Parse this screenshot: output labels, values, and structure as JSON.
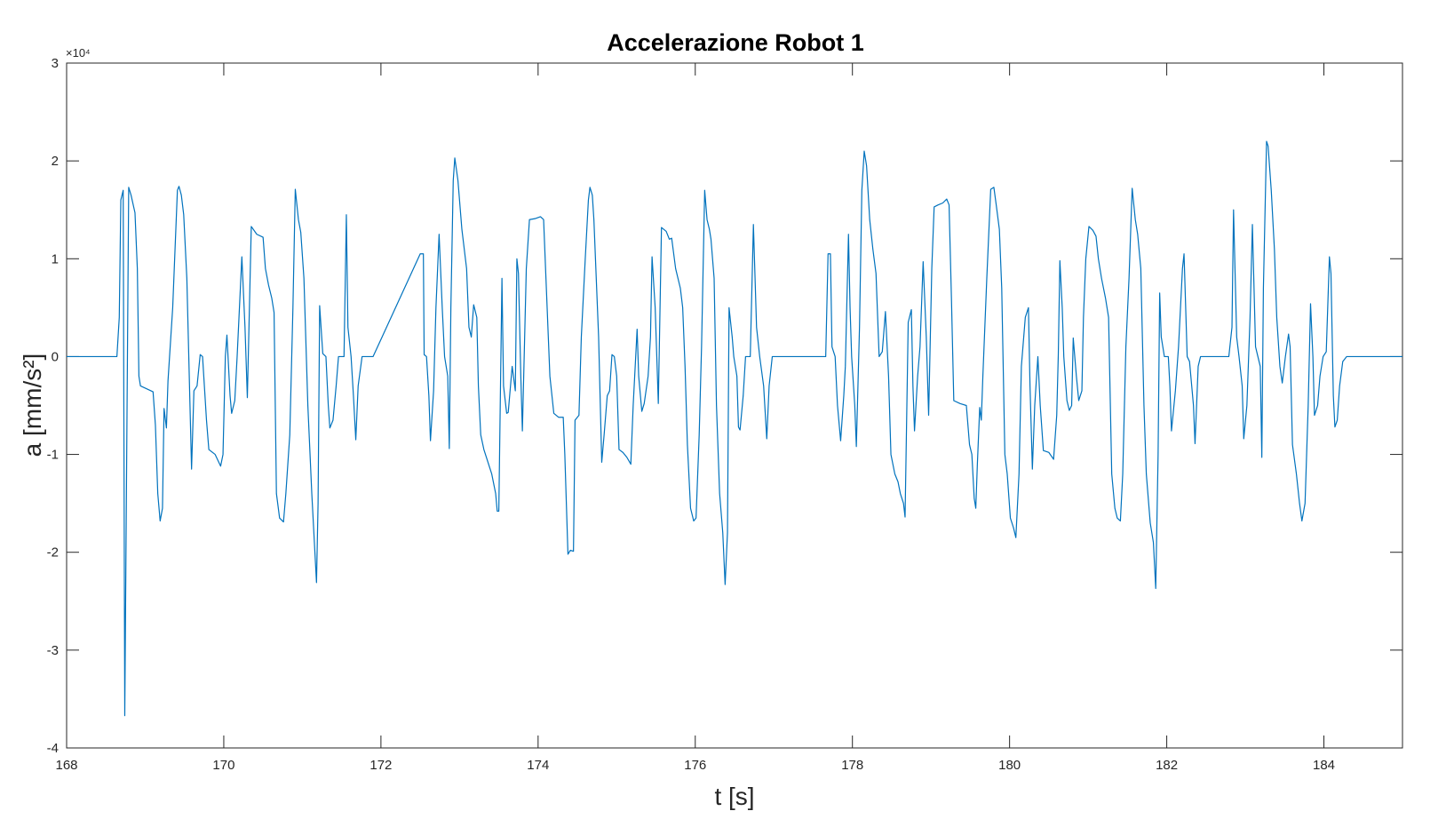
{
  "chart_data": {
    "type": "line",
    "title": "Accelerazione Robot 1",
    "x_label": "t [s]",
    "y_label": "a [mm/s²]",
    "y_exponent": "×10⁴",
    "xlim": [
      168,
      185
    ],
    "xticks": [
      168,
      170,
      172,
      174,
      176,
      178,
      180,
      182,
      184
    ],
    "ylim": [
      -40000,
      30000
    ],
    "yticks": [
      {
        "value": -40000,
        "label": "-4"
      },
      {
        "value": -30000,
        "label": "-3"
      },
      {
        "value": -20000,
        "label": "-2"
      },
      {
        "value": -10000,
        "label": "-1"
      },
      0,
      {
        "value": 10000,
        "label": "1"
      },
      {
        "value": 20000,
        "label": "2"
      },
      {
        "value": 30000,
        "label": "3"
      }
    ],
    "grid": false,
    "x": [
      168.0,
      168.64,
      168.67,
      168.69,
      168.72,
      168.74,
      168.79,
      168.82,
      168.87,
      168.9,
      168.92,
      168.94,
      169.1,
      169.13,
      169.16,
      169.19,
      169.22,
      169.24,
      169.27,
      169.29,
      169.35,
      169.37,
      169.41,
      169.43,
      169.46,
      169.49,
      169.53,
      169.59,
      169.62,
      169.66,
      169.7,
      169.73,
      169.78,
      169.81,
      169.89,
      169.96,
      169.99,
      170.02,
      170.04,
      170.08,
      170.1,
      170.14,
      170.17,
      170.23,
      170.27,
      170.3,
      170.35,
      170.42,
      170.5,
      170.53,
      170.57,
      170.61,
      170.64,
      170.67,
      170.71,
      170.76,
      170.79,
      170.84,
      170.88,
      170.91,
      170.95,
      170.98,
      171.02,
      171.07,
      171.12,
      171.18,
      171.2,
      171.22,
      171.26,
      171.3,
      171.33,
      171.35,
      171.39,
      171.43,
      171.46,
      171.53,
      171.56,
      171.58,
      171.62,
      171.65,
      171.68,
      171.71,
      171.76,
      171.9,
      172.5,
      172.54,
      172.55,
      172.58,
      172.61,
      172.63,
      172.67,
      172.7,
      172.74,
      172.78,
      172.81,
      172.85,
      172.87,
      172.89,
      172.92,
      172.94,
      172.98,
      173.03,
      173.09,
      173.12,
      173.15,
      173.18,
      173.22,
      173.24,
      173.27,
      173.31,
      173.35,
      173.41,
      173.46,
      173.48,
      173.5,
      173.54,
      173.56,
      173.6,
      173.62,
      173.67,
      173.71,
      173.73,
      173.75,
      173.78,
      173.8,
      173.85,
      173.89,
      173.96,
      174.03,
      174.07,
      174.1,
      174.15,
      174.2,
      174.26,
      174.32,
      174.34,
      174.38,
      174.41,
      174.45,
      174.47,
      174.52,
      174.55,
      174.6,
      174.64,
      174.66,
      174.69,
      174.71,
      174.73,
      174.77,
      174.81,
      174.84,
      174.88,
      174.91,
      174.94,
      174.97,
      175.0,
      175.03,
      175.08,
      175.13,
      175.18,
      175.21,
      175.26,
      175.28,
      175.32,
      175.35,
      175.4,
      175.43,
      175.45,
      175.49,
      175.53,
      175.57,
      175.63,
      175.67,
      175.7,
      175.75,
      175.81,
      175.84,
      175.87,
      175.9,
      175.94,
      175.98,
      176.01,
      176.05,
      176.08,
      176.12,
      176.15,
      176.18,
      176.2,
      176.24,
      176.27,
      176.31,
      176.35,
      176.38,
      176.41,
      176.43,
      176.47,
      176.49,
      176.53,
      176.55,
      176.57,
      176.61,
      176.64,
      176.7,
      176.74,
      176.78,
      176.82,
      176.87,
      176.91,
      176.94,
      176.98,
      177.03,
      177.66,
      177.69,
      177.72,
      177.74,
      177.78,
      177.81,
      177.85,
      177.89,
      177.91,
      177.95,
      177.97,
      177.99,
      178.03,
      178.05,
      178.09,
      178.12,
      178.15,
      178.18,
      178.22,
      178.26,
      178.3,
      178.34,
      178.38,
      178.42,
      178.46,
      178.49,
      178.54,
      178.58,
      178.61,
      178.65,
      178.67,
      178.71,
      178.75,
      178.77,
      178.79,
      178.83,
      178.86,
      178.9,
      178.94,
      178.97,
      179.01,
      179.04,
      179.09,
      179.15,
      179.2,
      179.23,
      179.26,
      179.29,
      179.37,
      179.45,
      179.49,
      179.52,
      179.55,
      179.57,
      179.59,
      179.62,
      179.64,
      179.66,
      179.71,
      179.76,
      179.8,
      179.83,
      179.87,
      179.9,
      179.94,
      179.97,
      180.01,
      180.05,
      180.08,
      180.12,
      180.15,
      180.2,
      180.24,
      180.26,
      180.29,
      180.32,
      180.36,
      180.39,
      180.43,
      180.5,
      180.56,
      180.6,
      180.62,
      180.64,
      180.67,
      180.69,
      180.73,
      180.76,
      180.79,
      180.81,
      180.85,
      180.88,
      180.92,
      180.94,
      180.97,
      181.01,
      181.06,
      181.1,
      181.13,
      181.17,
      181.22,
      181.26,
      181.3,
      181.34,
      181.37,
      181.41,
      181.44,
      181.48,
      181.52,
      181.56,
      181.6,
      181.63,
      181.67,
      181.71,
      181.74,
      181.79,
      181.83,
      181.86,
      181.89,
      181.91,
      181.93,
      181.97,
      182.02,
      182.04,
      182.06,
      182.11,
      182.15,
      182.2,
      182.22,
      182.26,
      182.29,
      182.34,
      182.36,
      182.4,
      182.43,
      182.79,
      182.83,
      182.85,
      182.89,
      182.92,
      182.96,
      182.98,
      183.02,
      183.06,
      183.09,
      183.13,
      183.16,
      183.19,
      183.21,
      183.23,
      183.27,
      183.29,
      183.33,
      183.37,
      183.4,
      183.44,
      183.47,
      183.51,
      183.55,
      183.57,
      183.6,
      183.65,
      183.69,
      183.72,
      183.76,
      183.8,
      183.83,
      183.86,
      183.88,
      183.92,
      183.95,
      183.99,
      184.03,
      184.07,
      184.09,
      184.12,
      184.14,
      184.17,
      184.2,
      184.24,
      184.29,
      185.0
    ],
    "series": [
      {
        "color": "#0072bd",
        "values": [
          0,
          0,
          4000,
          16000,
          17000,
          -36700,
          17300,
          16500,
          14700,
          9000,
          -2000,
          -3000,
          -3600,
          -7000,
          -14000,
          -16800,
          -15500,
          -5300,
          -7300,
          -2500,
          5000,
          9000,
          17000,
          17400,
          16500,
          14500,
          8000,
          -11500,
          -3500,
          -3000,
          200,
          0,
          -6500,
          -9500,
          -10000,
          -11200,
          -10000,
          0,
          2200,
          -4000,
          -5800,
          -4500,
          0,
          10200,
          3000,
          -4200,
          13300,
          12500,
          12200,
          9000,
          7300,
          6000,
          4500,
          -14000,
          -16500,
          -16900,
          -14000,
          -8000,
          5000,
          17100,
          14000,
          12700,
          8000,
          -5000,
          -14000,
          -23100,
          -15000,
          5200,
          300,
          0,
          -5000,
          -7300,
          -6500,
          -3000,
          0,
          0,
          14500,
          3000,
          0,
          -4000,
          -8500,
          -3000,
          0,
          0,
          10500,
          10500,
          200,
          0,
          -4000,
          -8600,
          -3500,
          5000,
          12500,
          5000,
          0,
          -2000,
          -9400,
          5000,
          18000,
          20300,
          18000,
          13000,
          9000,
          3000,
          2000,
          5300,
          4000,
          -3000,
          -8000,
          -9500,
          -10500,
          -12000,
          -14000,
          -15800,
          -15800,
          8000,
          -3000,
          -5800,
          -5700,
          -1000,
          -3500,
          10000,
          8500,
          -2000,
          -7600,
          9000,
          14000,
          14100,
          14300,
          14000,
          8000,
          -2000,
          -5800,
          -6200,
          -6200,
          -10000,
          -20200,
          -19800,
          -19900,
          -6500,
          -6000,
          2000,
          10000,
          16000,
          17300,
          16500,
          14000,
          10000,
          2000,
          -10800,
          -8000,
          -4000,
          -3500,
          200,
          0,
          -2000,
          -9500,
          -9800,
          -10300,
          -11000,
          -5000,
          2800,
          -2000,
          -5600,
          -4800,
          -2000,
          2000,
          10200,
          5000,
          -4800,
          13200,
          12800,
          12000,
          12100,
          9000,
          7000,
          5000,
          -1000,
          -9000,
          -15500,
          -16800,
          -16500,
          -8000,
          1000,
          17000,
          14000,
          13000,
          12000,
          8000,
          -5000,
          -14000,
          -18000,
          -23300,
          -18000,
          5000,
          2000,
          0,
          -2000,
          -7200,
          -7500,
          -4000,
          0,
          0,
          13500,
          3000,
          0,
          -3000,
          -8400,
          -3000,
          0,
          0,
          0,
          10500,
          10500,
          1000,
          0,
          -5000,
          -8600,
          -4000,
          -1000,
          12500,
          5000,
          0,
          -5000,
          -9200,
          3000,
          17000,
          21000,
          19500,
          14000,
          11000,
          8500,
          0,
          500,
          4600,
          -2000,
          -10000,
          -12000,
          -12800,
          -14000,
          -15000,
          -16400,
          3500,
          4800,
          -3000,
          -7600,
          -2000,
          1000,
          9700,
          2000,
          -6000,
          9000,
          15300,
          15500,
          15700,
          16100,
          15500,
          6000,
          -4500,
          -4800,
          -5000,
          -9000,
          -10000,
          -14500,
          -15500,
          -11000,
          -5200,
          -6500,
          -2000,
          8000,
          17100,
          17300,
          15500,
          13000,
          7000,
          -10000,
          -12000,
          -16500,
          -17500,
          -18500,
          -12000,
          -1000,
          4000,
          5000,
          -3000,
          -11500,
          -5000,
          0,
          -5000,
          -9600,
          -9800,
          -10500,
          -6000,
          200,
          9800,
          5000,
          0,
          -4500,
          -5500,
          -5000,
          1900,
          -2000,
          -4500,
          -3500,
          4000,
          10000,
          13300,
          12900,
          12300,
          10000,
          8000,
          6000,
          4000,
          -12000,
          -15500,
          -16500,
          -16800,
          -12000,
          1000,
          8000,
          17200,
          14000,
          12500,
          9000,
          -5000,
          -12000,
          -17000,
          -19000,
          -23700,
          -10000,
          6500,
          2000,
          0,
          0,
          -3000,
          -7600,
          -3500,
          1000,
          9000,
          10500,
          0,
          -500,
          -5000,
          -8900,
          -1000,
          0,
          0,
          3000,
          15000,
          2000,
          0,
          -3000,
          -8400,
          -5000,
          4000,
          13500,
          1000,
          0,
          -1000,
          -10300,
          7000,
          22000,
          21500,
          17000,
          11000,
          4000,
          -1000,
          -2700,
          0,
          2300,
          1000,
          -9000,
          -12000,
          -15000,
          -16800,
          -15000,
          -5000,
          5400,
          0,
          -6000,
          -5000,
          -2000,
          0,
          500,
          10200,
          8500,
          -4000,
          -7200,
          -6500,
          -3000,
          -500,
          0,
          0
        ]
      }
    ]
  }
}
